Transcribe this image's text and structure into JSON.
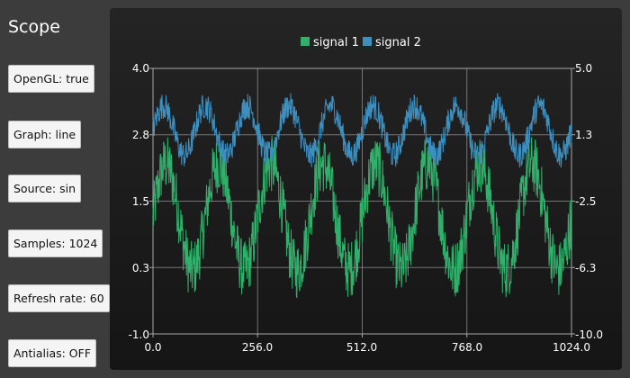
{
  "sidebar": {
    "title": "Scope",
    "buttons": [
      {
        "id": "opengl",
        "label": "OpenGL: true"
      },
      {
        "id": "graph",
        "label": "Graph: line"
      },
      {
        "id": "source",
        "label": "Source: sin"
      },
      {
        "id": "samples",
        "label": "Samples: 1024"
      },
      {
        "id": "refresh",
        "label": "Refresh rate: 60"
      },
      {
        "id": "antialias",
        "label": "Antialias: OFF"
      }
    ]
  },
  "colors": {
    "signal1": "#30b06a",
    "signal2": "#3d8fc0",
    "grid": "#9a9a9a",
    "axis_text": "#ffffff"
  },
  "chart_data": {
    "type": "line",
    "legend": [
      "signal 1",
      "signal 2"
    ],
    "legend_position": "top-center",
    "grid": true,
    "x_axis": {
      "range": [
        0,
        1024
      ],
      "ticks": [
        "0.0",
        "256.0",
        "512.0",
        "768.0",
        "1024.0"
      ]
    },
    "y_axis_left": {
      "range": [
        -1.0,
        4.0
      ],
      "ticks": [
        "4.0",
        "2.8",
        "1.5",
        "0.3",
        "-1.0"
      ]
    },
    "y_axis_right": {
      "range": [
        -10.0,
        5.0
      ],
      "ticks": [
        "5.0",
        "1.3",
        "-2.5",
        "-6.3",
        "-10.0"
      ]
    },
    "series": [
      {
        "name": "signal 1",
        "axis": "left",
        "samples": 1024,
        "waveform": "sin",
        "center": 1.2,
        "amplitude": 1.0,
        "cycles": 8,
        "noise": 0.55
      },
      {
        "name": "signal 2",
        "axis": "right",
        "samples": 1024,
        "waveform": "sin",
        "center": 1.5,
        "amplitude": 1.4,
        "cycles": 10,
        "noise": 0.75
      }
    ]
  }
}
